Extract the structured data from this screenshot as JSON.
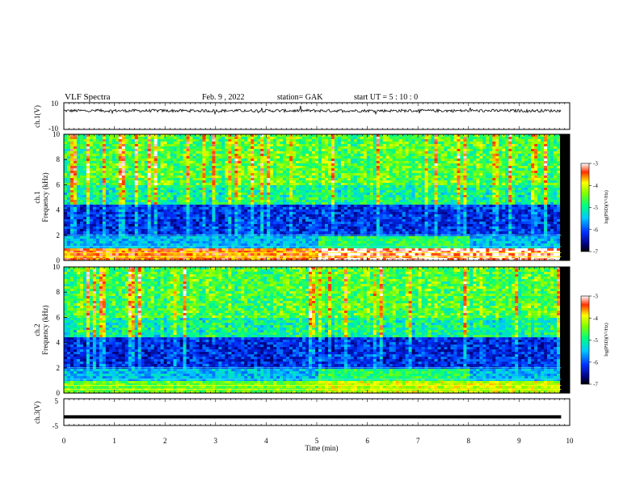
{
  "header": {
    "title": "VLF Spectra",
    "date": "Feb. 9  , 2022",
    "station": "station= GAK",
    "start": "start  UT  =   5  : 10 : 0"
  },
  "chart_data": [
    {
      "type": "line",
      "panel": "ch1-waveform",
      "ylabel": "ch.1(V)",
      "ylim": [
        -10,
        10
      ],
      "yticks": [
        "10",
        "-10"
      ],
      "series": [
        {
          "x": [
            0,
            9.83
          ],
          "values": [
            4,
            4
          ]
        }
      ],
      "color": "#000000"
    },
    {
      "type": "heatmap",
      "panel": "ch1-spectrogram",
      "ylabel": "ch.1\nFrequency  (kHz)",
      "ylim": [
        0,
        10
      ],
      "yticks": [
        "0",
        "2",
        "4",
        "6",
        "8",
        "10"
      ],
      "colorbar": {
        "label": "log(PSD)(V²/Hz)",
        "ticks": [
          "-3",
          "-4",
          "-5",
          "-6",
          "-7"
        ],
        "range": [
          -7,
          -3
        ]
      },
      "description_levels": {
        "lowband_0_1kHz": -3.5,
        "band_1_2kHz": -5.5,
        "band_2_4kHz": -6.3,
        "band_4_10kHz": -4.8
      }
    },
    {
      "type": "heatmap",
      "panel": "ch2-spectrogram",
      "ylabel": "ch.2\nFrequency  (kHz)",
      "ylim": [
        0,
        10
      ],
      "yticks": [
        "0",
        "2",
        "4",
        "6",
        "8",
        "10"
      ],
      "colorbar": {
        "label": "log(PSD)(V²/Hz)",
        "ticks": [
          "-3",
          "-4",
          "-5",
          "-6",
          "-7"
        ],
        "range": [
          -7,
          -3
        ]
      },
      "description_levels": {
        "lowband_0_1kHz": -4.5,
        "band_1_2kHz": -5.5,
        "band_2_4kHz": -6.3,
        "band_4_10kHz": -4.8
      }
    },
    {
      "type": "line",
      "panel": "ch3-waveform",
      "ylabel": "ch.3(V)",
      "ylim": [
        -5,
        5
      ],
      "yticks": [
        "5",
        "-5"
      ],
      "series": [
        {
          "x": [
            0,
            9.83
          ],
          "values": [
            -1.8,
            -1.8
          ]
        }
      ],
      "color": "#000000"
    }
  ],
  "xaxis": {
    "label": "Time  (min)",
    "ticks": [
      "0",
      "1",
      "2",
      "3",
      "4",
      "5",
      "6",
      "7",
      "8",
      "9",
      "10"
    ],
    "range": [
      0,
      10
    ]
  }
}
